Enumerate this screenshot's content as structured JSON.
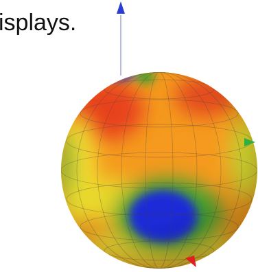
{
  "text_fragment": "isplays."
}
